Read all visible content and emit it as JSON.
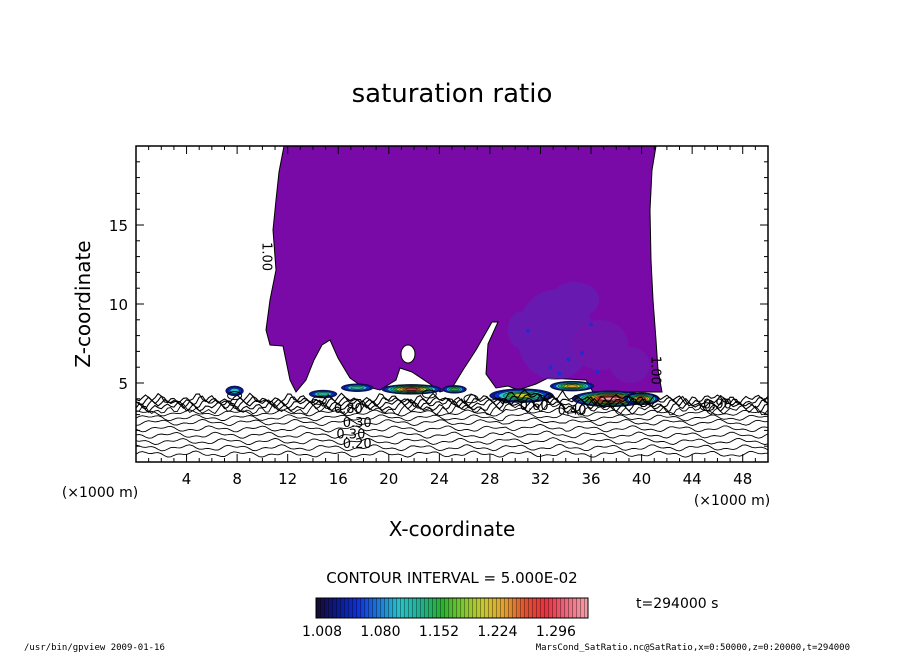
{
  "chart_data": {
    "type": "contour",
    "title": "saturation ratio",
    "xlabel": "X-coordinate",
    "ylabel": "Z-coordinate",
    "x_unit_label": "(×1000 m)",
    "y_unit_label": "(×1000 m)",
    "xlim": [
      0,
      50
    ],
    "ylim": [
      0,
      20
    ],
    "x_ticks": [
      4,
      8,
      12,
      16,
      20,
      24,
      28,
      32,
      36,
      40,
      44,
      48
    ],
    "y_ticks": [
      5,
      10,
      15
    ],
    "contour_interval_label": "CONTOUR INTERVAL = 5.000E-02",
    "time_label": "t=294000 s",
    "colorbar": {
      "tick_labels": [
        "1.008",
        "1.080",
        "1.152",
        "1.224",
        "1.296"
      ],
      "min": 1.008,
      "max": 1.296,
      "colors": [
        "#1a0a30",
        "#0a1a8a",
        "#1030d8",
        "#1c7ad8",
        "#28c2c8",
        "#20b090",
        "#28b030",
        "#7cc830",
        "#c8c830",
        "#e0a030",
        "#e05030",
        "#e83040",
        "#ec6a80",
        "#f4a0a8"
      ]
    },
    "contour_labels": [
      {
        "text": "1.00",
        "x": 10.0,
        "y": 13.0,
        "rotate": 90
      },
      {
        "text": "1.00",
        "x": 40.8,
        "y": 5.8,
        "rotate": 90
      },
      {
        "text": "0.30",
        "x": 17.5,
        "y": 2.2
      },
      {
        "text": "0.30",
        "x": 17.0,
        "y": 1.5
      },
      {
        "text": "0.20",
        "x": 17.5,
        "y": 0.9
      },
      {
        "text": "0.80",
        "x": 16.8,
        "y": 3.1
      },
      {
        "text": "0.60",
        "x": 31.5,
        "y": 3.3
      },
      {
        "text": "0.40",
        "x": 34.5,
        "y": 3.0
      },
      {
        "text": "0.90",
        "x": 46.0,
        "y": 3.4
      }
    ],
    "supersaturated_region_color": "#7a0aa8",
    "footer_left": "/usr/bin/gpview  2009-01-16",
    "footer_right": "MarsCond_SatRatio.nc@SatRatio,x=0:50000,z=0:20000,t=294000"
  }
}
